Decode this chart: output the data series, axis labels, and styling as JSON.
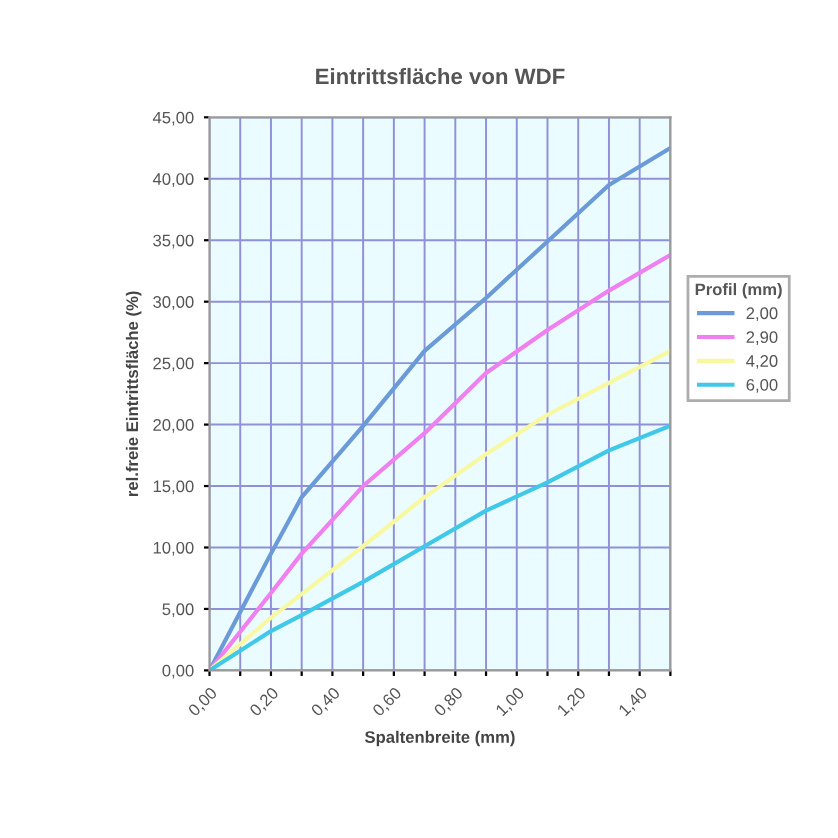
{
  "chart_data": {
    "type": "line",
    "title": "Eintrittsfläche von WDF",
    "xlabel": "Spaltenbreite (mm)",
    "ylabel": "rel.freie Eintrittsfläche (%)",
    "legend_title": "Profil (mm)",
    "legend": "right",
    "grid": true,
    "marker": "none",
    "line_style": "solid",
    "xlim": [
      0,
      1.5
    ],
    "ylim": [
      0,
      45
    ],
    "xticks": [
      {
        "value": 0,
        "label": "0,00"
      },
      {
        "value": 0.1,
        "label": null
      },
      {
        "value": 0.2,
        "label": "0,20"
      },
      {
        "value": 0.3,
        "label": null
      },
      {
        "value": 0.4,
        "label": "0,40"
      },
      {
        "value": 0.5,
        "label": null
      },
      {
        "value": 0.6,
        "label": "0,60"
      },
      {
        "value": 0.7,
        "label": null
      },
      {
        "value": 0.8,
        "label": "0,80"
      },
      {
        "value": 0.9,
        "label": null
      },
      {
        "value": 1.0,
        "label": "1,00"
      },
      {
        "value": 1.1,
        "label": null
      },
      {
        "value": 1.2,
        "label": "1,20"
      },
      {
        "value": 1.3,
        "label": null
      },
      {
        "value": 1.4,
        "label": "1,40"
      },
      {
        "value": 1.5,
        "label": null
      }
    ],
    "yticks": [
      {
        "value": 0,
        "label": "0,00"
      },
      {
        "value": 5,
        "label": "5,00"
      },
      {
        "value": 10,
        "label": "10,00"
      },
      {
        "value": 15,
        "label": "15,00"
      },
      {
        "value": 20,
        "label": "20,00"
      },
      {
        "value": 25,
        "label": "25,00"
      },
      {
        "value": 30,
        "label": "30,00"
      },
      {
        "value": 35,
        "label": "35,00"
      },
      {
        "value": 40,
        "label": "40,00"
      },
      {
        "value": 45,
        "label": "45,00"
      }
    ],
    "x": [
      0,
      0.2,
      0.3,
      0.5,
      0.7,
      0.9,
      1.1,
      1.3,
      1.5
    ],
    "series": [
      {
        "name": "2,00",
        "color": "#6a9ad8",
        "values": [
          0,
          9.5,
          14.1,
          19.9,
          26.0,
          30.3,
          34.9,
          39.5,
          42.5
        ]
      },
      {
        "name": "2,90",
        "color": "#f080f0",
        "values": [
          0,
          6.3,
          9.5,
          15.0,
          19.3,
          24.2,
          27.7,
          30.9,
          33.8
        ]
      },
      {
        "name": "4,20",
        "color": "#f8f8a0",
        "values": [
          0,
          4.3,
          6.2,
          10.1,
          14.1,
          17.6,
          20.8,
          23.4,
          26.0
        ]
      },
      {
        "name": "6,00",
        "color": "#40c8e8",
        "values": [
          0,
          3.2,
          4.5,
          7.2,
          10.1,
          13.0,
          15.3,
          17.9,
          19.9
        ]
      }
    ]
  }
}
